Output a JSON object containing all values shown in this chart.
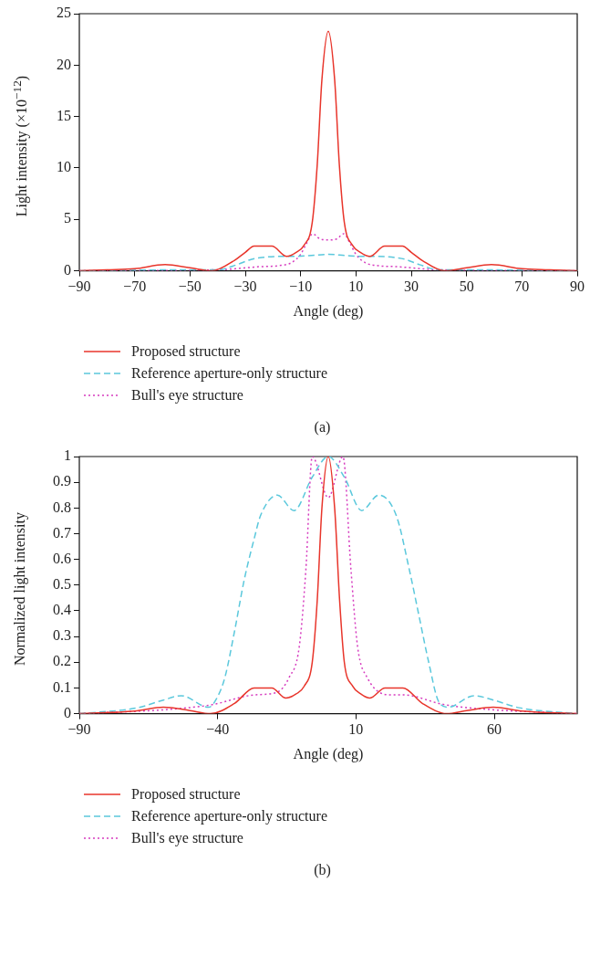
{
  "chart_data": [
    {
      "type": "line",
      "title": "(a)",
      "xlabel": "Angle (deg)",
      "ylabel": "Light intensity (×10$^{−12}$)",
      "xlim": [
        -90,
        90
      ],
      "xticks": [
        {
          "value": -90,
          "label": "−90"
        },
        {
          "value": -70,
          "label": "−70"
        },
        {
          "value": -50,
          "label": "−50"
        },
        {
          "value": -30,
          "label": "−30"
        },
        {
          "value": -10,
          "label": "−10"
        },
        10,
        30,
        50,
        70,
        90
      ],
      "ylim": [
        0,
        25
      ],
      "yticks": [
        0,
        5,
        10,
        15,
        20,
        25
      ],
      "grid": false,
      "legend": "bottom",
      "marker": "none",
      "series": [
        {
          "name": "Proposed structure",
          "color": "#e8352b",
          "line_style": "solid",
          "x": [
            -90,
            -80,
            -70,
            -59,
            -50,
            -42,
            -34,
            -30,
            -26.8,
            -20.4,
            -15,
            -11.6,
            -8.7,
            -5.8,
            -4,
            -2.3,
            0,
            2.3,
            4,
            5.8,
            8.7,
            11.6,
            15,
            20.4,
            26.8,
            30,
            34,
            42,
            50,
            59,
            70,
            80,
            90
          ],
          "values": [
            0,
            0.1,
            0.2,
            0.6,
            0.3,
            0,
            1,
            1.8,
            2.4,
            2.4,
            1.4,
            1.8,
            2.5,
            4.7,
            10.3,
            18.6,
            23.3,
            18.6,
            10.3,
            4.7,
            2.5,
            1.8,
            1.4,
            2.4,
            2.4,
            1.8,
            1,
            0,
            0.3,
            0.6,
            0.2,
            0.1,
            0
          ]
        },
        {
          "name": "Reference aperture-only structure",
          "color": "#5bc8dc",
          "line_style": "dashed",
          "x": [
            -90,
            -50,
            -40,
            -33,
            -28,
            -24,
            -18,
            -12,
            -6,
            0,
            6,
            12,
            18,
            24,
            28,
            33,
            40,
            50,
            90
          ],
          "values": [
            0,
            0.1,
            0.1,
            0.6,
            1.1,
            1.3,
            1.4,
            1.4,
            1.5,
            1.6,
            1.5,
            1.4,
            1.4,
            1.3,
            1.1,
            0.6,
            0.1,
            0.1,
            0
          ]
        },
        {
          "name": "Bull's eye structure",
          "color": "#d63bbf",
          "line_style": "dotted",
          "x": [
            -90,
            -40,
            -25,
            -18,
            -13.3,
            -10,
            -8,
            -5.6,
            -3,
            0,
            3,
            5.6,
            8,
            10,
            13.3,
            18,
            25,
            40,
            90
          ],
          "values": [
            0,
            0.1,
            0.4,
            0.5,
            0.8,
            1.6,
            2.6,
            3.6,
            3.1,
            3.0,
            3.1,
            3.6,
            2.6,
            1.6,
            0.8,
            0.5,
            0.4,
            0.1,
            0
          ]
        }
      ]
    },
    {
      "type": "line",
      "title": "(b)",
      "xlabel": "Angle (deg)",
      "ylabel": "Normalized light intensity",
      "xlim": [
        -90,
        90
      ],
      "xticks": [
        {
          "value": -90,
          "label": "−90"
        },
        {
          "value": -40,
          "label": "−40"
        },
        10,
        60
      ],
      "ylim": [
        0,
        1
      ],
      "yticks": [
        0,
        0.1,
        0.2,
        0.3,
        0.4,
        0.5,
        0.6,
        0.7,
        0.8,
        0.9,
        1
      ],
      "grid": false,
      "legend": "bottom",
      "marker": "none",
      "series": [
        {
          "name": "Proposed structure",
          "color": "#e8352b",
          "line_style": "solid",
          "x": [
            -90,
            -70,
            -59.6,
            -50,
            -42.6,
            -33.9,
            -26.8,
            -20.4,
            -15.4,
            -11.6,
            -8.7,
            -5.8,
            -4,
            -2.3,
            0,
            2.3,
            4.1,
            5.8,
            8.8,
            11.7,
            15,
            20.5,
            27,
            34,
            42.8,
            50,
            59.7,
            70,
            90
          ],
          "values": [
            0,
            0.01,
            0.025,
            0.012,
            0,
            0.04,
            0.1,
            0.1,
            0.061,
            0.077,
            0.107,
            0.2,
            0.44,
            0.8,
            1,
            0.8,
            0.44,
            0.2,
            0.107,
            0.077,
            0.061,
            0.1,
            0.1,
            0.04,
            0,
            0.012,
            0.025,
            0.01,
            0
          ]
        },
        {
          "name": "Reference aperture-only structure",
          "color": "#5bc8dc",
          "line_style": "dashed",
          "x": [
            -90,
            -69,
            -59.6,
            -53.2,
            -43.2,
            -40.3,
            -37.4,
            -33.9,
            -30.4,
            -26.8,
            -24.5,
            -18.4,
            -12.4,
            -5.8,
            0,
            5.8,
            12.1,
            18.2,
            24.6,
            29.3,
            32.8,
            36.3,
            39.9,
            43.4,
            52.7,
            59.7,
            69,
            90
          ],
          "values": [
            0,
            0.023,
            0.053,
            0.07,
            0.025,
            0.06,
            0.14,
            0.32,
            0.52,
            0.68,
            0.77,
            0.85,
            0.79,
            0.92,
            1,
            0.92,
            0.79,
            0.85,
            0.77,
            0.56,
            0.38,
            0.2,
            0.047,
            0.025,
            0.07,
            0.053,
            0.023,
            0
          ]
        },
        {
          "name": "Bull's eye structure",
          "color": "#d63bbf",
          "line_style": "dotted",
          "x": [
            -90,
            -57.2,
            -42,
            -26.8,
            -18.6,
            -14.2,
            -10.5,
            -8.1,
            -5.8,
            0,
            5.3,
            8.2,
            10.6,
            14.1,
            22.3,
            27,
            42,
            57.2,
            90
          ],
          "values": [
            0,
            0.017,
            0.035,
            0.073,
            0.083,
            0.14,
            0.26,
            0.56,
            1,
            0.84,
            1,
            0.56,
            0.26,
            0.14,
            0.073,
            0.073,
            0.035,
            0.017,
            0
          ]
        }
      ]
    }
  ]
}
